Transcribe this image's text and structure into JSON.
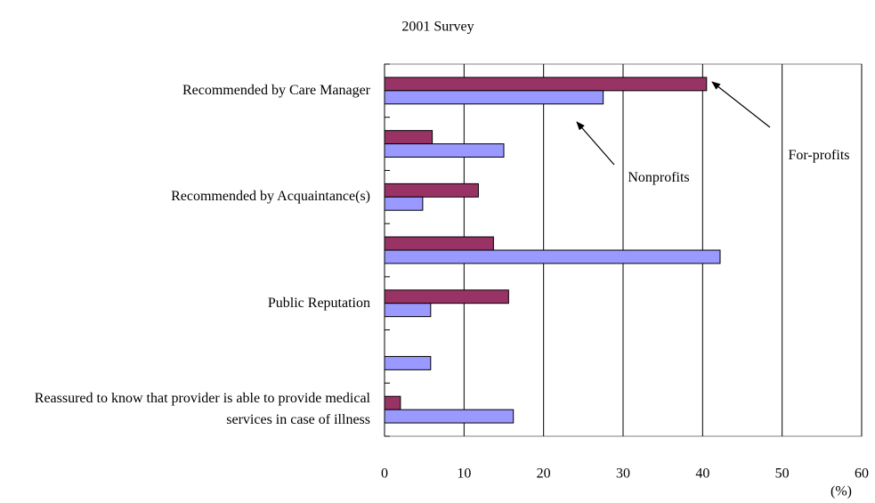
{
  "chart_data": {
    "type": "bar",
    "orientation": "horizontal",
    "title": "2001 Survey",
    "x_label": "(%)",
    "categories": [
      "Recommended by Care Manager",
      null,
      "Recommended by Acquaintance(s)",
      null,
      "Public Reputation",
      null,
      "Reassured to know that provider is able to provide medical services in case of illness"
    ],
    "series": [
      {
        "name": "For-profits",
        "color": "#993366",
        "values": [
          40.5,
          6,
          11.8,
          13.7,
          15.6,
          0,
          2
        ]
      },
      {
        "name": "Nonprofits",
        "color": "#9999ff",
        "values": [
          27.5,
          15,
          4.8,
          42.2,
          5.8,
          5.8,
          16.2
        ]
      }
    ],
    "xlim": [
      0,
      60
    ],
    "xticks": [
      0,
      10,
      20,
      30,
      40,
      50,
      60
    ],
    "grid": true
  }
}
